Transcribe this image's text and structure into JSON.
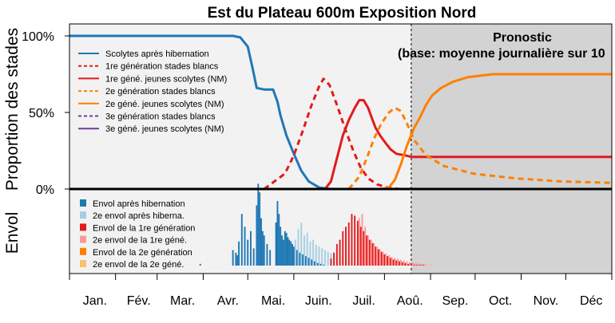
{
  "chart_data": {
    "type": "line",
    "title": "Est du Plateau 600m Exposition Nord",
    "ylabel_top": "Proportion des stades",
    "ylabel_bottom": "Envol",
    "y_ticks": [
      "100%",
      "50%",
      "0%"
    ],
    "months": [
      "Jan.",
      "Fév.",
      "Mar.",
      "Avr.",
      "Mai.",
      "Juin.",
      "Juil.",
      "Aoû.",
      "Sep.",
      "Oct.",
      "Nov.",
      "Déc"
    ],
    "forecast": {
      "start_day": 230,
      "label_line1": "Pronostic",
      "label_line2": "(base: moyenne journalière sur 10"
    },
    "colors": {
      "blue": "#1f78b4",
      "light_blue": "#a6cee3",
      "red": "#e31a1c",
      "light_red": "#fb9a99",
      "orange": "#ff7f00",
      "light_orange": "#fdbf6f",
      "purple": "#6a3d9a",
      "panel_bg": "#f2f2f2",
      "forecast_bg": "#d3d3d3"
    },
    "series": [
      {
        "name": "Scolytes après hibernation",
        "color": "#1f78b4",
        "dash": false,
        "points": [
          [
            0,
            100
          ],
          [
            110,
            100
          ],
          [
            115,
            99
          ],
          [
            120,
            93
          ],
          [
            123,
            80
          ],
          [
            126,
            66
          ],
          [
            131,
            65
          ],
          [
            137,
            65
          ],
          [
            140,
            57
          ],
          [
            142,
            48
          ],
          [
            146,
            35
          ],
          [
            151,
            23
          ],
          [
            156,
            12
          ],
          [
            161,
            5
          ],
          [
            168,
            1
          ],
          [
            176,
            0
          ],
          [
            230,
            0
          ]
        ]
      },
      {
        "name": "1re génération stades blancs",
        "color": "#e31a1c",
        "dash": true,
        "points": [
          [
            131,
            0
          ],
          [
            145,
            10
          ],
          [
            151,
            22
          ],
          [
            157,
            38
          ],
          [
            163,
            55
          ],
          [
            168,
            67
          ],
          [
            171,
            72
          ],
          [
            175,
            68
          ],
          [
            180,
            55
          ],
          [
            186,
            38
          ],
          [
            191,
            25
          ],
          [
            196,
            14
          ],
          [
            201,
            7
          ],
          [
            207,
            3
          ],
          [
            214,
            1
          ],
          [
            222,
            0
          ],
          [
            230,
            0
          ]
        ]
      },
      {
        "name": "1re géné. jeunes scolytes (NM)",
        "color": "#e31a1c",
        "dash": false,
        "points": [
          [
            172,
            0
          ],
          [
            176,
            5
          ],
          [
            180,
            20
          ],
          [
            184,
            35
          ],
          [
            188,
            45
          ],
          [
            192,
            53
          ],
          [
            195,
            58
          ],
          [
            198,
            58
          ],
          [
            201,
            53
          ],
          [
            204,
            45
          ],
          [
            206,
            40
          ],
          [
            209,
            35
          ],
          [
            212,
            31
          ],
          [
            216,
            26
          ],
          [
            220,
            23
          ],
          [
            226,
            22
          ],
          [
            230,
            21
          ],
          [
            365,
            21
          ]
        ]
      },
      {
        "name": "2e génération stades blancs",
        "color": "#ff7f00",
        "dash": true,
        "points": [
          [
            188,
            0
          ],
          [
            195,
            8
          ],
          [
            200,
            20
          ],
          [
            205,
            33
          ],
          [
            210,
            43
          ],
          [
            215,
            50
          ],
          [
            219,
            53
          ],
          [
            223,
            51
          ],
          [
            227,
            43
          ],
          [
            232,
            32
          ],
          [
            240,
            22
          ],
          [
            252,
            15
          ],
          [
            272,
            10
          ],
          [
            300,
            7
          ],
          [
            330,
            5
          ],
          [
            365,
            4
          ]
        ]
      },
      {
        "name": "2e géné. jeunes scolytes (NM)",
        "color": "#ff7f00",
        "dash": false,
        "points": [
          [
            210,
            0
          ],
          [
            215,
            1
          ],
          [
            219,
            6
          ],
          [
            223,
            16
          ],
          [
            227,
            28
          ],
          [
            232,
            40
          ],
          [
            236,
            47
          ],
          [
            240,
            55
          ],
          [
            244,
            61
          ],
          [
            250,
            66
          ],
          [
            258,
            70
          ],
          [
            268,
            73
          ],
          [
            285,
            75
          ],
          [
            365,
            75
          ]
        ]
      },
      {
        "name": "3e génération stades blancs",
        "color": "#6a3d9a",
        "dash": true,
        "points": []
      },
      {
        "name": "3e géné. jeunes scolytes (NM)",
        "color": "#6a3d9a",
        "dash": false,
        "points": []
      }
    ],
    "flight_legend": [
      {
        "name": "Envol après hibernation",
        "color": "#1f78b4"
      },
      {
        "name": "2e envol après hiberna.",
        "color": "#a6cee3"
      },
      {
        "name": "Envol de la 1re génération",
        "color": "#e31a1c"
      },
      {
        "name": "2e envol de la 1re géné.",
        "color": "#fb9a99"
      },
      {
        "name": "Envol de la 2e génération",
        "color": "#ff7f00"
      },
      {
        "name": "2e envol de la 2e géné.",
        "color": "#fdbf6f"
      }
    ],
    "flight_groups": [
      {
        "name": "Envol après hibernation",
        "color": "#1f78b4",
        "bars": [
          [
            88,
            2
          ],
          [
            110,
            18
          ],
          [
            112,
            15
          ],
          [
            113,
            12
          ],
          [
            114,
            28
          ],
          [
            116,
            60
          ],
          [
            118,
            45
          ],
          [
            120,
            30
          ],
          [
            122,
            40
          ],
          [
            124,
            20
          ],
          [
            126,
            70
          ],
          [
            127,
            95
          ],
          [
            128,
            85
          ],
          [
            129,
            55
          ],
          [
            130,
            40
          ],
          [
            131,
            35
          ],
          [
            133,
            25
          ],
          [
            135,
            18
          ],
          [
            139,
            50
          ],
          [
            140,
            75
          ],
          [
            141,
            60
          ],
          [
            142,
            45
          ],
          [
            143,
            35
          ],
          [
            144,
            30
          ],
          [
            145,
            40
          ],
          [
            146,
            38
          ],
          [
            147,
            33
          ],
          [
            148,
            30
          ],
          [
            149,
            28
          ],
          [
            150,
            25
          ],
          [
            151,
            22
          ],
          [
            152,
            20
          ],
          [
            153,
            18
          ],
          [
            154,
            16
          ],
          [
            155,
            15
          ],
          [
            156,
            14
          ],
          [
            157,
            13
          ],
          [
            158,
            12
          ],
          [
            159,
            11
          ],
          [
            160,
            10
          ],
          [
            161,
            9
          ],
          [
            162,
            8
          ],
          [
            163,
            7
          ],
          [
            164,
            6
          ],
          [
            165,
            5
          ],
          [
            166,
            4
          ],
          [
            167,
            3
          ],
          [
            168,
            3
          ],
          [
            169,
            2
          ],
          [
            170,
            2
          ],
          [
            171,
            1
          ],
          [
            172,
            1
          ]
        ]
      },
      {
        "name": "2e envol après hiberna.",
        "color": "#a6cee3",
        "bars": [
          [
            152,
            30
          ],
          [
            154,
            42
          ],
          [
            156,
            50
          ],
          [
            158,
            35
          ],
          [
            160,
            38
          ],
          [
            162,
            28
          ],
          [
            164,
            30
          ],
          [
            166,
            24
          ],
          [
            168,
            22
          ],
          [
            170,
            20
          ],
          [
            172,
            18
          ],
          [
            174,
            16
          ],
          [
            176,
            14
          ],
          [
            178,
            12
          ],
          [
            180,
            10
          ],
          [
            182,
            9
          ],
          [
            184,
            7
          ],
          [
            186,
            6
          ],
          [
            188,
            5
          ],
          [
            190,
            4
          ],
          [
            192,
            3
          ],
          [
            194,
            2
          ],
          [
            196,
            2
          ],
          [
            198,
            1
          ]
        ]
      },
      {
        "name": "Envol de la 1re génération",
        "color": "#e31a1c",
        "bars": [
          [
            176,
            8
          ],
          [
            178,
            15
          ],
          [
            180,
            25
          ],
          [
            182,
            30
          ],
          [
            184,
            40
          ],
          [
            186,
            45
          ],
          [
            188,
            50
          ],
          [
            190,
            60
          ],
          [
            192,
            58
          ],
          [
            194,
            52
          ],
          [
            196,
            45
          ],
          [
            198,
            40
          ],
          [
            200,
            35
          ],
          [
            202,
            30
          ],
          [
            204,
            26
          ],
          [
            206,
            22
          ],
          [
            208,
            19
          ],
          [
            210,
            16
          ],
          [
            212,
            13
          ],
          [
            214,
            11
          ],
          [
            216,
            9
          ],
          [
            218,
            7
          ],
          [
            220,
            6
          ],
          [
            222,
            5
          ],
          [
            224,
            4
          ],
          [
            226,
            3
          ],
          [
            228,
            2
          ],
          [
            230,
            2
          ],
          [
            232,
            1
          ],
          [
            234,
            1
          ],
          [
            236,
            1
          ],
          [
            238,
            1
          ]
        ]
      },
      {
        "name": "2e envol de la 1re géné.",
        "color": "#fb9a99",
        "bars": [
          [
            195,
            55
          ],
          [
            197,
            60
          ],
          [
            199,
            45
          ],
          [
            201,
            35
          ],
          [
            203,
            30
          ],
          [
            205,
            26
          ],
          [
            207,
            22
          ],
          [
            209,
            19
          ],
          [
            211,
            16
          ],
          [
            213,
            14
          ],
          [
            215,
            12
          ],
          [
            217,
            10
          ],
          [
            219,
            9
          ],
          [
            221,
            8
          ],
          [
            223,
            7
          ],
          [
            225,
            6
          ],
          [
            227,
            5
          ],
          [
            229,
            4
          ],
          [
            231,
            4
          ],
          [
            233,
            3
          ],
          [
            235,
            3
          ],
          [
            237,
            2
          ],
          [
            239,
            2
          ],
          [
            241,
            1
          ],
          [
            243,
            1
          ]
        ]
      }
    ]
  }
}
